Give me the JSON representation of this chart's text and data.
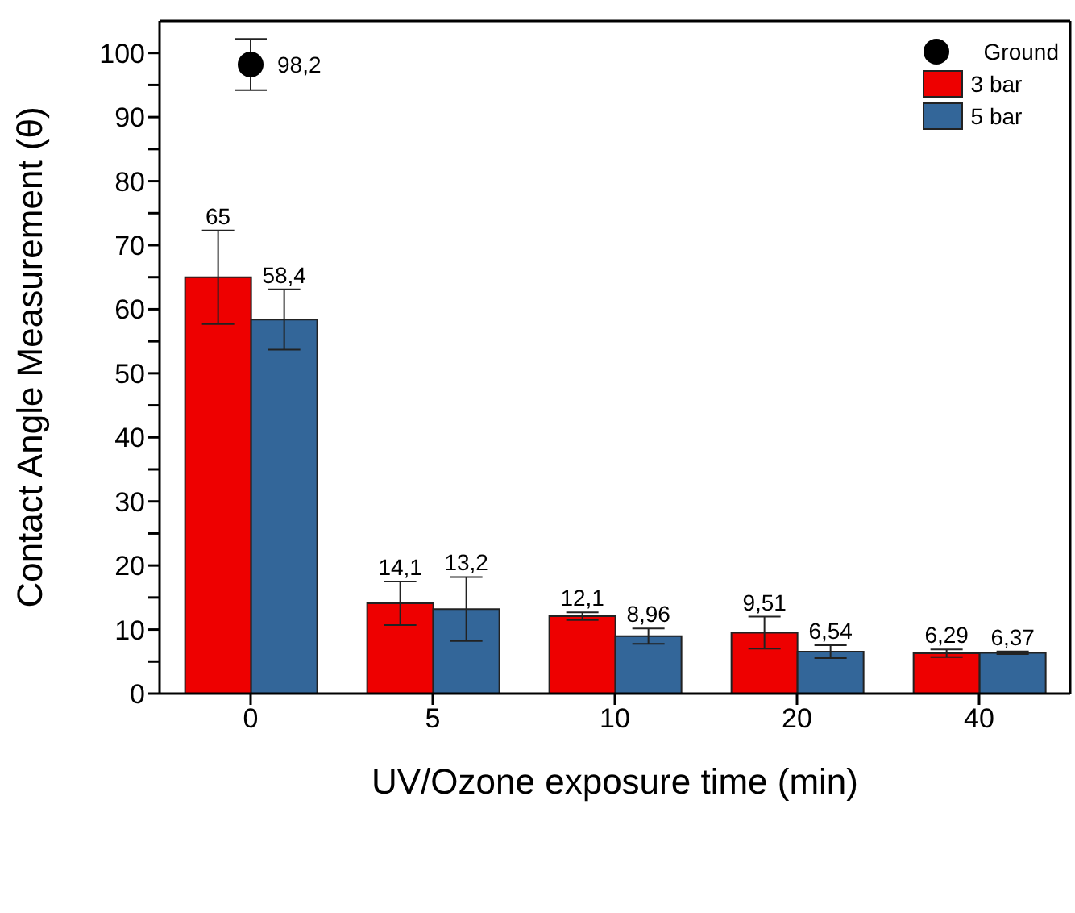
{
  "chart_data": {
    "type": "bar",
    "xlabel": "UV/Ozone exposure time (min)",
    "ylabel": "Contact Angle Measurement (θ)",
    "categories": [
      "0",
      "5",
      "10",
      "20",
      "40"
    ],
    "series": [
      {
        "name": "Ground",
        "type": "scatter",
        "color": "#000000",
        "x": [
          "0"
        ],
        "values": [
          98.2
        ],
        "errors": [
          4
        ],
        "value_labels": [
          "98,2"
        ]
      },
      {
        "name": "3 bar",
        "color": "#ee0000",
        "values": [
          65,
          14.1,
          12.1,
          9.51,
          6.29
        ],
        "errors": [
          7.3,
          3.4,
          0.6,
          2.5,
          0.6
        ],
        "value_labels": [
          "65",
          "14,1",
          "12,1",
          "9,51",
          "6,29"
        ]
      },
      {
        "name": "5 bar",
        "color": "#336699",
        "values": [
          58.4,
          13.2,
          8.96,
          6.54,
          6.37
        ],
        "errors": [
          4.7,
          5,
          1.2,
          1,
          0.2
        ],
        "value_labels": [
          "58,4",
          "13,2",
          "8,96",
          "6,54",
          "6,37"
        ]
      }
    ],
    "ylim": [
      0,
      105
    ],
    "yticks": [
      0,
      {
        "value": 5,
        "label": null
      },
      10,
      {
        "value": 15,
        "label": null
      },
      20,
      {
        "value": 25,
        "label": null
      },
      30,
      {
        "value": 35,
        "label": null
      },
      40,
      {
        "value": 45,
        "label": null
      },
      50,
      {
        "value": 55,
        "label": null
      },
      60,
      {
        "value": 65,
        "label": null
      },
      70,
      {
        "value": 75,
        "label": null
      },
      80,
      {
        "value": 85,
        "label": null
      },
      90,
      {
        "value": 95,
        "label": null
      },
      100
    ],
    "legend": "top right",
    "marker": "circle"
  }
}
